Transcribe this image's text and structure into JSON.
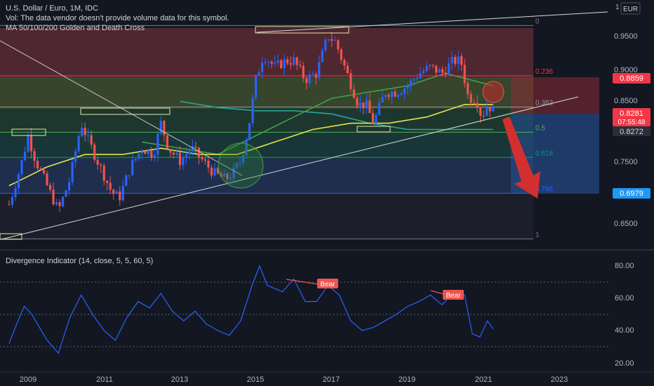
{
  "header": {
    "title": "U.S. Dollar / Euro, 1M, IDC",
    "vol_note": "Vol: The data vendor doesn't provide volume data for this symbol.",
    "ma_note": "MA 50/100/200 Golden and Death Cross",
    "currency": "EUR"
  },
  "indicator": {
    "title": "Divergence Indicator (14, close, 5, 5, 60, 5)",
    "bear_label": "Bear",
    "ticks": [
      "80.00",
      "60.00",
      "40.00",
      "20.00"
    ]
  },
  "price_axis": {
    "ticks": [
      "1",
      "0.9500",
      "0.9000",
      "0.8500",
      "0.7500",
      "0.6500"
    ],
    "current_price": "0.8281",
    "countdown": "07:55:48",
    "ma_price": "0.8272",
    "fib_236_price": "0.8859",
    "fib_786_price": "0.6979"
  },
  "fib_levels": [
    {
      "label": "0",
      "value": 0.9664,
      "color": "#787b86"
    },
    {
      "label": "0.236",
      "value": 0.8859,
      "color": "#f23645"
    },
    {
      "label": "0.382",
      "value": 0.836,
      "color": "#9598a1"
    },
    {
      "label": "0.5",
      "value": 0.7957,
      "color": "#4caf50"
    },
    {
      "label": "0.618",
      "value": 0.7553,
      "color": "#089981"
    },
    {
      "label": "0.786",
      "value": 0.6979,
      "color": "#2962ff"
    },
    {
      "label": "1",
      "value": 0.6248,
      "color": "#787b86"
    }
  ],
  "time_axis": [
    "2009",
    "2011",
    "2013",
    "2015",
    "2017",
    "2019",
    "2021",
    "2023"
  ],
  "colors": {
    "background": "#131722",
    "bull": "#2962ff",
    "bear": "#ef5350",
    "ma_fast": "#e5e54a",
    "ma_mid": "#43a047",
    "ma_slow": "#26a69a",
    "indicator_line": "#2962ff",
    "arrow": "#d32f2f"
  },
  "chart_data": [
    {
      "type": "candlestick",
      "title": "U.S. Dollar / Euro, 1M, IDC",
      "x_unit": "year",
      "ylim": [
        0.61,
        1.0
      ],
      "xlim": [
        2008.5,
        2024.0
      ],
      "closes": [
        [
          2008.5,
          0.68
        ],
        [
          2008.8,
          0.74
        ],
        [
          2009.0,
          0.79
        ],
        [
          2009.2,
          0.75
        ],
        [
          2009.5,
          0.71
        ],
        [
          2009.8,
          0.67
        ],
        [
          2010.1,
          0.72
        ],
        [
          2010.4,
          0.81
        ],
        [
          2010.6,
          0.78
        ],
        [
          2010.9,
          0.74
        ],
        [
          2011.2,
          0.7
        ],
        [
          2011.4,
          0.69
        ],
        [
          2011.7,
          0.74
        ],
        [
          2012.0,
          0.77
        ],
        [
          2012.3,
          0.76
        ],
        [
          2012.5,
          0.81
        ],
        [
          2012.7,
          0.77
        ],
        [
          2013.0,
          0.75
        ],
        [
          2013.3,
          0.77
        ],
        [
          2013.6,
          0.75
        ],
        [
          2013.9,
          0.73
        ],
        [
          2014.2,
          0.72
        ],
        [
          2014.4,
          0.73
        ],
        [
          2014.6,
          0.75
        ],
        [
          2014.8,
          0.8
        ],
        [
          2015.0,
          0.88
        ],
        [
          2015.2,
          0.92
        ],
        [
          2015.5,
          0.9
        ],
        [
          2015.8,
          0.91
        ],
        [
          2016.0,
          0.91
        ],
        [
          2016.3,
          0.88
        ],
        [
          2016.6,
          0.89
        ],
        [
          2016.9,
          0.95
        ],
        [
          2017.1,
          0.94
        ],
        [
          2017.4,
          0.89
        ],
        [
          2017.7,
          0.84
        ],
        [
          2017.9,
          0.84
        ],
        [
          2018.1,
          0.81
        ],
        [
          2018.4,
          0.86
        ],
        [
          2018.7,
          0.86
        ],
        [
          2019.0,
          0.87
        ],
        [
          2019.3,
          0.89
        ],
        [
          2019.6,
          0.9
        ],
        [
          2019.9,
          0.89
        ],
        [
          2020.2,
          0.91
        ],
        [
          2020.4,
          0.91
        ],
        [
          2020.6,
          0.85
        ],
        [
          2020.8,
          0.85
        ],
        [
          2020.95,
          0.82
        ],
        [
          2021.1,
          0.84
        ],
        [
          2021.25,
          0.83
        ]
      ],
      "ma_fast": [
        [
          2008.5,
          0.71
        ],
        [
          2009.5,
          0.74
        ],
        [
          2010.5,
          0.76
        ],
        [
          2011.5,
          0.76
        ],
        [
          2012.5,
          0.77
        ],
        [
          2013.5,
          0.76
        ],
        [
          2014.5,
          0.76
        ],
        [
          2015.5,
          0.78
        ],
        [
          2016.5,
          0.8
        ],
        [
          2017.5,
          0.81
        ],
        [
          2018.5,
          0.81
        ],
        [
          2019.5,
          0.82
        ],
        [
          2020.5,
          0.84
        ],
        [
          2021.25,
          0.84
        ]
      ],
      "ma_mid": [
        [
          2012.0,
          0.78
        ],
        [
          2013.0,
          0.77
        ],
        [
          2014.0,
          0.76
        ],
        [
          2015.0,
          0.79
        ],
        [
          2016.0,
          0.82
        ],
        [
          2017.0,
          0.85
        ],
        [
          2018.0,
          0.86
        ],
        [
          2019.0,
          0.87
        ],
        [
          2020.0,
          0.89
        ],
        [
          2021.25,
          0.87
        ]
      ],
      "ma_slow": [
        [
          2013.0,
          0.845
        ],
        [
          2014.0,
          0.835
        ],
        [
          2015.0,
          0.83
        ],
        [
          2016.0,
          0.83
        ],
        [
          2017.0,
          0.825
        ],
        [
          2018.0,
          0.81
        ],
        [
          2019.0,
          0.8
        ],
        [
          2020.0,
          0.8
        ],
        [
          2021.25,
          0.8
        ]
      ]
    },
    {
      "type": "line",
      "title": "Divergence Indicator (14, close, 5, 5, 60, 5)",
      "ylim": [
        16,
        85
      ],
      "x_unit": "year",
      "series": [
        {
          "values": [
            [
              2008.5,
              32
            ],
            [
              2008.7,
              44
            ],
            [
              2008.9,
              55
            ],
            [
              2009.1,
              50
            ],
            [
              2009.3,
              42
            ],
            [
              2009.5,
              34
            ],
            [
              2009.8,
              26
            ],
            [
              2010.1,
              48
            ],
            [
              2010.4,
              62
            ],
            [
              2010.7,
              50
            ],
            [
              2011.0,
              40
            ],
            [
              2011.3,
              34
            ],
            [
              2011.6,
              48
            ],
            [
              2011.9,
              58
            ],
            [
              2012.2,
              54
            ],
            [
              2012.5,
              63
            ],
            [
              2012.8,
              52
            ],
            [
              2013.1,
              46
            ],
            [
              2013.4,
              52
            ],
            [
              2013.7,
              44
            ],
            [
              2014.0,
              40
            ],
            [
              2014.3,
              37
            ],
            [
              2014.6,
              46
            ],
            [
              2014.9,
              68
            ],
            [
              2015.1,
              80
            ],
            [
              2015.3,
              68
            ],
            [
              2015.7,
              64
            ],
            [
              2016.0,
              72
            ],
            [
              2016.3,
              58
            ],
            [
              2016.6,
              58
            ],
            [
              2016.9,
              68
            ],
            [
              2017.2,
              62
            ],
            [
              2017.5,
              46
            ],
            [
              2017.8,
              40
            ],
            [
              2018.1,
              42
            ],
            [
              2018.4,
              46
            ],
            [
              2018.7,
              50
            ],
            [
              2019.0,
              55
            ],
            [
              2019.3,
              58
            ],
            [
              2019.6,
              62
            ],
            [
              2019.9,
              56
            ],
            [
              2020.2,
              63
            ],
            [
              2020.5,
              62
            ],
            [
              2020.7,
              38
            ],
            [
              2020.9,
              36
            ],
            [
              2021.1,
              46
            ],
            [
              2021.25,
              41
            ]
          ]
        }
      ]
    }
  ]
}
